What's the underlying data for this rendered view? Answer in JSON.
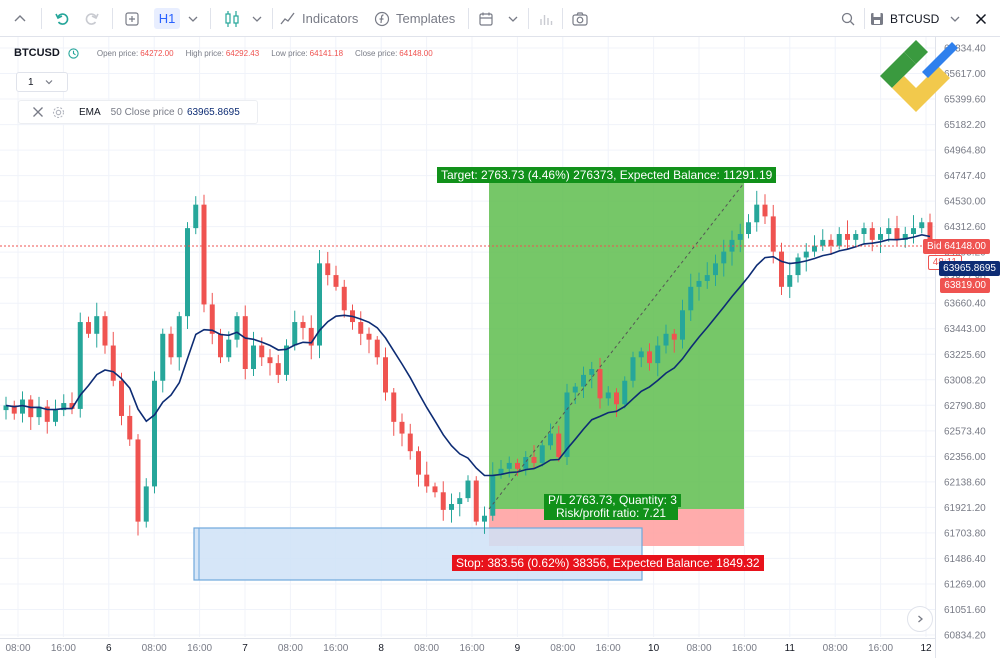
{
  "toolbar": {
    "timeframe": "H1",
    "indicators_label": "Indicators",
    "templates_label": "Templates",
    "symbol": "BTCUSD"
  },
  "legend": {
    "symbol": "BTCUSD",
    "open_label": "Open price:",
    "open_value": "64272.00",
    "high_label": "High price:",
    "high_value": "64292.43",
    "low_label": "Low price:",
    "low_value": "64141.18",
    "close_label": "Close price:",
    "close_value": "64148.00",
    "interval_value": "1"
  },
  "indicator": {
    "name": "EMA",
    "params": "50 Close price 0",
    "value": "63965.8695",
    "color": "#0d2c74"
  },
  "price_axis": {
    "ticks": [
      "65834.40",
      "65617.00",
      "65399.60",
      "65182.20",
      "64964.80",
      "64747.40",
      "64530.00",
      "64312.60",
      "64095.20",
      "63877.80",
      "63660.40",
      "63443.00",
      "63225.60",
      "63008.20",
      "62790.80",
      "62573.40",
      "62356.00",
      "62138.60",
      "61921.20",
      "61703.80",
      "61486.40",
      "61269.00",
      "61051.60",
      "60834.20"
    ],
    "bid_tag": "Bid 64148.00",
    "countdown_tag": "48:11",
    "ema_tag": "63965.8695",
    "ask_tag": "63819.00"
  },
  "time_axis": {
    "ticks": [
      "08:00",
      "16:00",
      "6",
      "08:00",
      "16:00",
      "7",
      "08:00",
      "16:00",
      "8",
      "08:00",
      "16:00",
      "9",
      "08:00",
      "16:00",
      "10",
      "08:00",
      "16:00",
      "11",
      "08:00",
      "16:00",
      "12"
    ]
  },
  "position_tool": {
    "target_label": "Target: 2763.73 (4.46%) 276373, Expected Balance: 11291.19",
    "pl_label": "P/L 2763.73, Quantity: 3",
    "rr_label": "Risk/profit ratio: 7.21",
    "stop_label": "Stop: 383.56 (0.62%) 38356, Expected Balance: 1849.32",
    "target_color": "#5ebd4e",
    "stop_color": "#ff9e9e"
  },
  "colors": {
    "up": "#26a69a",
    "down": "#ef5350",
    "bid": "#ef5350",
    "label_green": "#11911a",
    "label_red": "#e8121b"
  },
  "chart_data": {
    "type": "candlestick",
    "title": "",
    "series": [
      {
        "name": "BTCUSD"
      },
      {
        "name": "EMA"
      }
    ],
    "ylim": [
      60834.2,
      65834.4
    ],
    "close_approx": [
      62790,
      62720,
      62840,
      62690,
      62780,
      62650,
      62750,
      62810,
      62760,
      63500,
      63400,
      63550,
      63300,
      63000,
      62700,
      62500,
      61800,
      62100,
      63000,
      63400,
      63200,
      63550,
      64300,
      64500,
      63650,
      63400,
      63200,
      63350,
      63550,
      63100,
      63300,
      63200,
      63150,
      63050,
      63300,
      63500,
      63450,
      63300,
      64000,
      63900,
      63800,
      63600,
      63500,
      63400,
      63350,
      63200,
      62900,
      62650,
      62550,
      62400,
      62200,
      62100,
      62050,
      61900,
      61950,
      62000,
      62150,
      61800,
      61850,
      62200,
      62250,
      62300,
      62250,
      62350,
      62300,
      62450,
      62550,
      62350,
      62900,
      62950,
      63050,
      63100,
      62850,
      62900,
      62800,
      63000,
      63200,
      63250,
      63150,
      63300,
      63400,
      63350,
      63600,
      63800,
      63850,
      63900,
      64000,
      64100,
      64200,
      64250,
      64350,
      64500,
      64400,
      64100,
      63800,
      63900,
      64050,
      64100,
      64150,
      64200,
      64150,
      64250,
      64200,
      64250,
      64300,
      64200,
      64250,
      64300,
      64200,
      64250,
      64300,
      64350,
      64148
    ]
  }
}
